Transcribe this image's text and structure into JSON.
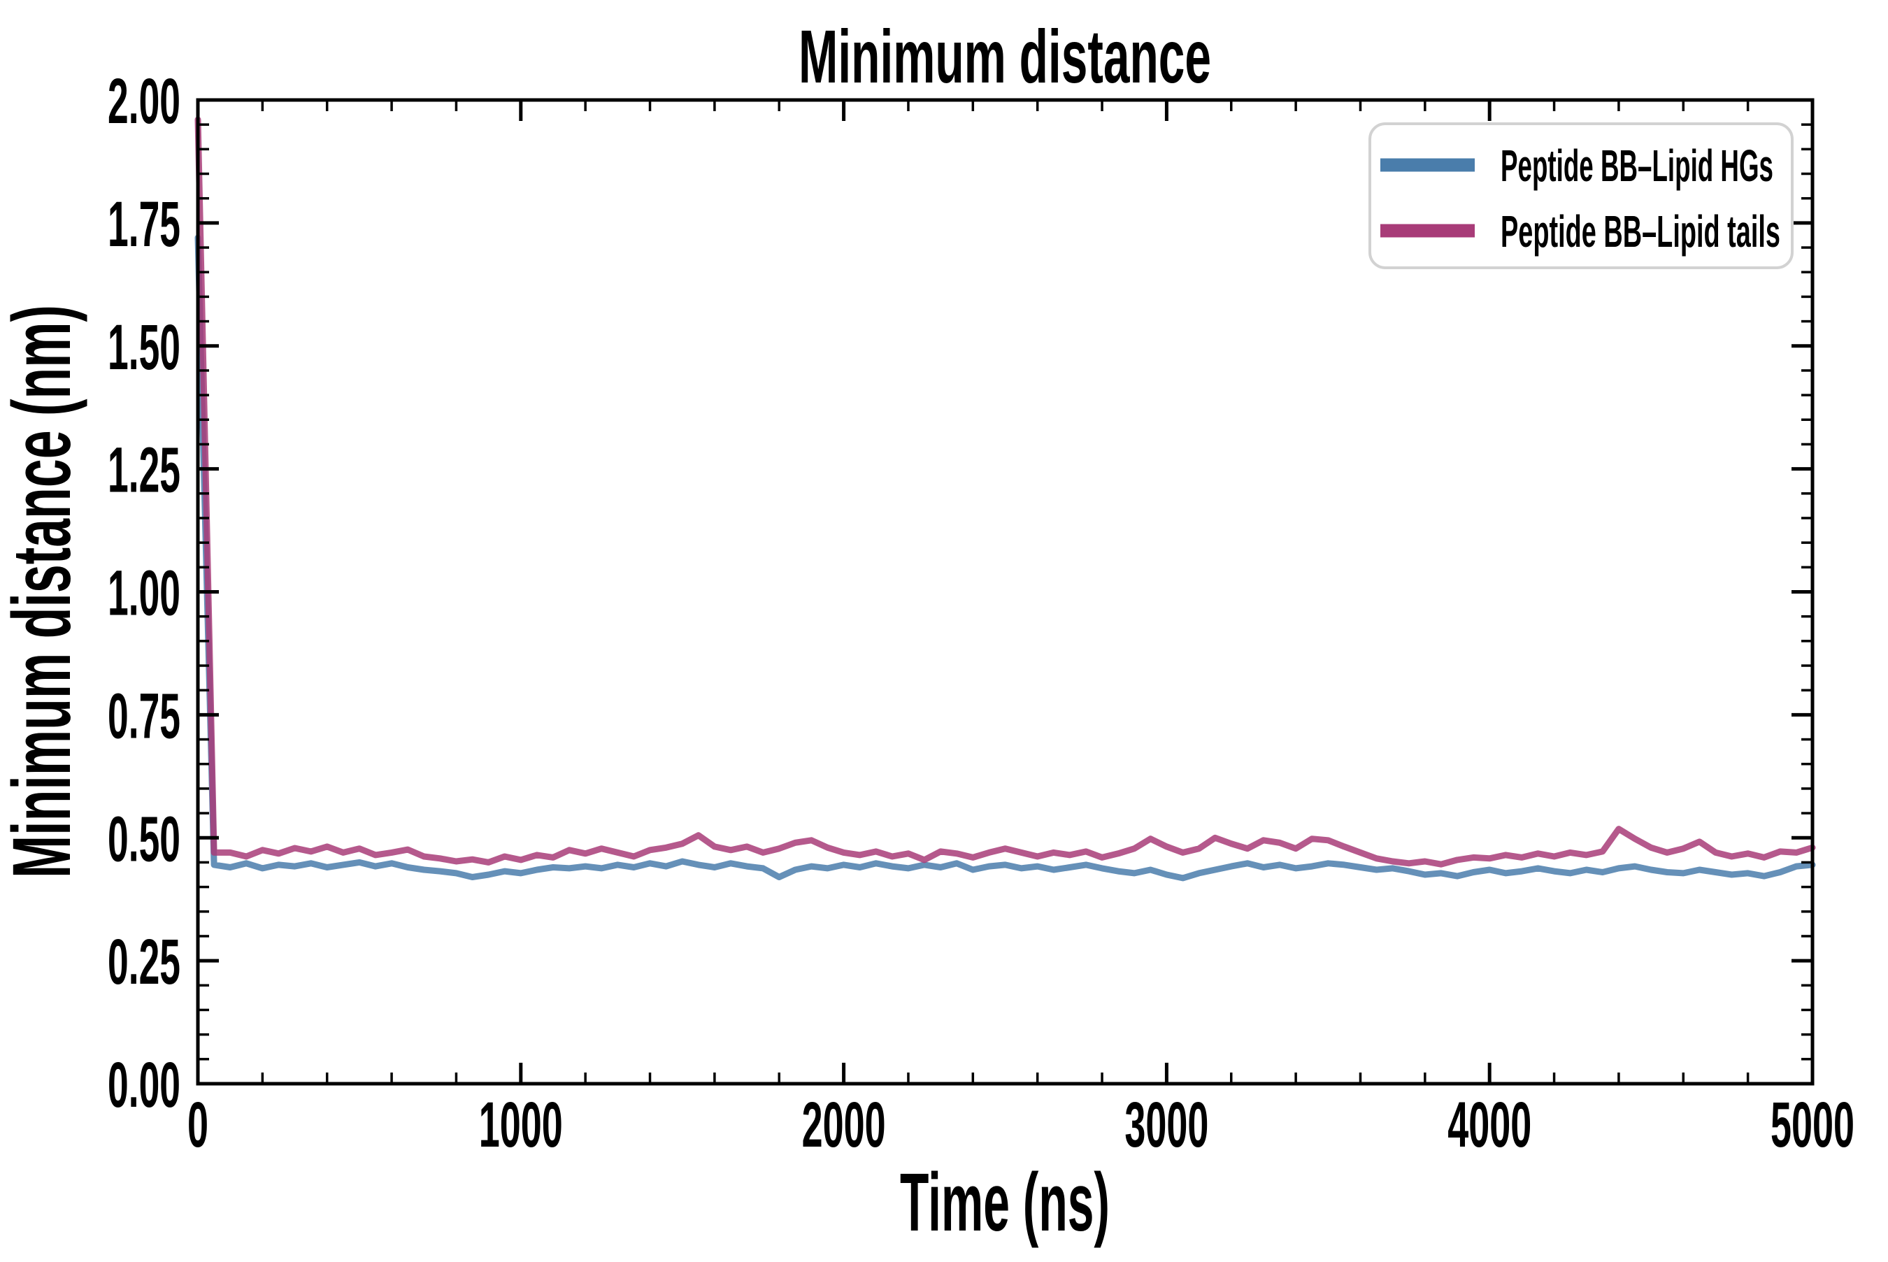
{
  "figure": {
    "title": "Minimum distance",
    "background_color": "#ffffff",
    "axes_color": "#000000"
  },
  "legend": {
    "position": "upper right",
    "border_color": "#d2d2d2",
    "fill_color": "#ffffff",
    "entries": [
      {
        "label": "Peptide BB–Lipid HGs",
        "color": "#4a7dab"
      },
      {
        "label": "Peptide BB–Lipid tails",
        "color": "#a83c78"
      }
    ]
  },
  "chart_data": {
    "type": "line",
    "title": "Minimum distance",
    "xlabel": "Time (ns)",
    "ylabel": "Minimum distance (nm)",
    "xlim": [
      0,
      5000
    ],
    "ylim": [
      0.0,
      2.0
    ],
    "grid": false,
    "legend_position": "upper right",
    "x_tick_labels": [
      "0",
      "1000",
      "2000",
      "3000",
      "4000",
      "5000"
    ],
    "y_tick_labels": [
      "0.00",
      "0.25",
      "0.50",
      "0.75",
      "1.00",
      "1.25",
      "1.50",
      "1.75",
      "2.00"
    ],
    "x_major_step": 1000,
    "x_minor_step": 200,
    "y_major_step": 0.25,
    "y_minor_step": 0.05,
    "x_start_ns": 0,
    "x_step_ns": 50,
    "line_opacity": 0.85,
    "series": [
      {
        "name": "Peptide BB–Lipid HGs",
        "color": "#4a7dab",
        "values": [
          1.72,
          0.445,
          0.44,
          0.448,
          0.438,
          0.445,
          0.442,
          0.448,
          0.44,
          0.445,
          0.45,
          0.442,
          0.448,
          0.44,
          0.435,
          0.432,
          0.428,
          0.42,
          0.425,
          0.432,
          0.428,
          0.435,
          0.44,
          0.438,
          0.442,
          0.438,
          0.445,
          0.44,
          0.448,
          0.442,
          0.452,
          0.445,
          0.44,
          0.448,
          0.442,
          0.438,
          0.42,
          0.435,
          0.442,
          0.438,
          0.445,
          0.44,
          0.448,
          0.442,
          0.438,
          0.445,
          0.44,
          0.448,
          0.435,
          0.442,
          0.445,
          0.438,
          0.442,
          0.435,
          0.44,
          0.445,
          0.438,
          0.432,
          0.428,
          0.435,
          0.425,
          0.418,
          0.428,
          0.435,
          0.442,
          0.448,
          0.44,
          0.445,
          0.438,
          0.442,
          0.448,
          0.445,
          0.44,
          0.435,
          0.438,
          0.432,
          0.425,
          0.428,
          0.422,
          0.43,
          0.435,
          0.428,
          0.432,
          0.438,
          0.432,
          0.428,
          0.435,
          0.43,
          0.438,
          0.442,
          0.435,
          0.43,
          0.428,
          0.435,
          0.43,
          0.425,
          0.428,
          0.422,
          0.43,
          0.442,
          0.445
        ]
      },
      {
        "name": "Peptide BB–Lipid tails",
        "color": "#a83c78",
        "values": [
          1.96,
          0.47,
          0.47,
          0.462,
          0.475,
          0.468,
          0.479,
          0.472,
          0.482,
          0.47,
          0.478,
          0.465,
          0.47,
          0.476,
          0.462,
          0.458,
          0.452,
          0.456,
          0.45,
          0.462,
          0.455,
          0.465,
          0.46,
          0.475,
          0.468,
          0.478,
          0.47,
          0.462,
          0.475,
          0.48,
          0.488,
          0.505,
          0.482,
          0.475,
          0.482,
          0.47,
          0.478,
          0.49,
          0.495,
          0.48,
          0.47,
          0.465,
          0.472,
          0.462,
          0.468,
          0.455,
          0.472,
          0.468,
          0.46,
          0.47,
          0.478,
          0.47,
          0.462,
          0.47,
          0.465,
          0.472,
          0.46,
          0.468,
          0.478,
          0.498,
          0.482,
          0.47,
          0.478,
          0.5,
          0.488,
          0.478,
          0.495,
          0.49,
          0.478,
          0.498,
          0.495,
          0.482,
          0.47,
          0.458,
          0.452,
          0.448,
          0.452,
          0.446,
          0.455,
          0.46,
          0.458,
          0.465,
          0.46,
          0.468,
          0.462,
          0.47,
          0.465,
          0.472,
          0.518,
          0.498,
          0.48,
          0.47,
          0.478,
          0.492,
          0.47,
          0.462,
          0.468,
          0.46,
          0.472,
          0.47,
          0.48
        ]
      }
    ]
  }
}
